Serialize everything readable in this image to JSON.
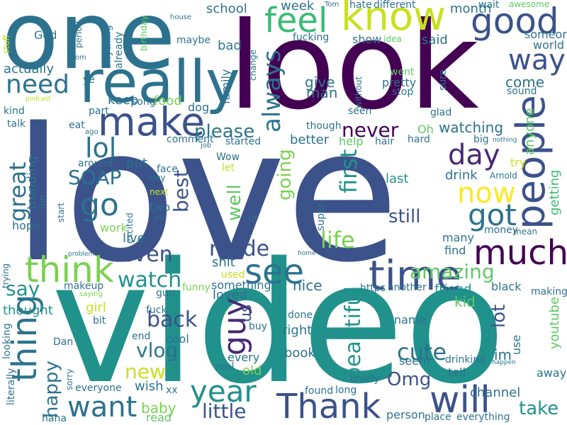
{
  "colors": {
    "background": "#ffffff",
    "palette": [
      "#440154",
      "#3b528b",
      "#21918c",
      "#5ec962",
      "#fde725"
    ]
  },
  "words": [
    {
      "text": "love",
      "color": "#3b528b"
    },
    {
      "text": "video",
      "color": "#21918c"
    },
    {
      "text": "look",
      "color": "#440154"
    },
    {
      "text": "one",
      "color": "#2c728e"
    },
    {
      "text": "know",
      "color": "#c8e020"
    },
    {
      "text": "really",
      "color": "#2c728e"
    },
    {
      "text": "people",
      "color": "#3b528b"
    },
    {
      "text": "make",
      "color": "#3b528b"
    },
    {
      "text": "feel",
      "color": "#3aba76"
    },
    {
      "text": "good",
      "color": "#3b528b"
    },
    {
      "text": "way",
      "color": "#3b528b"
    },
    {
      "text": "need",
      "color": "#2c728e"
    },
    {
      "text": "thing",
      "color": "#2c728e"
    },
    {
      "text": "think",
      "color": "#7ad151"
    },
    {
      "text": "time",
      "color": "#3b528b"
    },
    {
      "text": "much",
      "color": "#440154"
    },
    {
      "text": "day",
      "color": "#482878"
    },
    {
      "text": "now",
      "color": "#fde725"
    },
    {
      "text": "see",
      "color": "#2c728e"
    },
    {
      "text": "guy",
      "color": "#482878"
    },
    {
      "text": "got",
      "color": "#2c728e"
    },
    {
      "text": "go",
      "color": "#2c728e"
    },
    {
      "text": "lol",
      "color": "#2c728e"
    },
    {
      "text": "year",
      "color": "#21918c"
    },
    {
      "text": "Thank",
      "color": "#3b528b"
    },
    {
      "text": "will",
      "color": "#3b528b"
    },
    {
      "text": "want",
      "color": "#2c728e"
    },
    {
      "text": "getting",
      "color": "#3aba76"
    },
    {
      "text": "always",
      "color": "#2c728e"
    },
    {
      "text": "even",
      "color": "#3b528b"
    },
    {
      "text": "watch",
      "color": "#21918c"
    },
    {
      "text": "made",
      "color": "#3b528b"
    },
    {
      "text": "life",
      "color": "#7ad151"
    },
    {
      "text": "say",
      "color": "#21918c"
    },
    {
      "text": "amazing",
      "color": "#5ec962"
    },
    {
      "text": "first",
      "color": "#21918c"
    },
    {
      "text": "back",
      "color": "#3b528b"
    },
    {
      "text": "beautiful",
      "color": "#21918c"
    },
    {
      "text": "great",
      "color": "#2c728e"
    },
    {
      "text": "SOAP",
      "color": "#2c728e"
    },
    {
      "text": "please",
      "color": "#2c728e"
    },
    {
      "text": "best",
      "color": "#3b528b"
    },
    {
      "text": "going",
      "color": "#7ad151"
    },
    {
      "text": "well",
      "color": "#5ec962"
    },
    {
      "text": "cute",
      "color": "#2c728e"
    },
    {
      "text": "lot",
      "color": "#3b528b"
    },
    {
      "text": "vlog",
      "color": "#2c728e"
    },
    {
      "text": "still",
      "color": "#3b528b"
    },
    {
      "text": "never",
      "color": "#440154"
    },
    {
      "text": "happy",
      "color": "#2c728e"
    },
    {
      "text": "little",
      "color": "#3b528b"
    },
    {
      "text": "Omg",
      "color": "#3b528b"
    },
    {
      "text": "take",
      "color": "#21918c"
    },
    {
      "text": "new",
      "color": "#c8e020"
    },
    {
      "text": "us",
      "color": "#3b528b"
    },
    {
      "text": "trending",
      "color": "#2c728e"
    },
    {
      "text": "anyone",
      "color": "#5ec962"
    },
    {
      "text": "come",
      "color": "#2c728e"
    },
    {
      "text": "watching",
      "color": "#2c728e"
    },
    {
      "text": "give",
      "color": "#2c728e"
    },
    {
      "text": "man",
      "color": "#2c728e"
    },
    {
      "text": "week",
      "color": "#2c728e"
    },
    {
      "text": "school",
      "color": "#2c728e"
    },
    {
      "text": "month",
      "color": "#2c728e"
    },
    {
      "text": "show",
      "color": "#2c728e"
    },
    {
      "text": "said",
      "color": "#2c728e"
    },
    {
      "text": "someone",
      "color": "#2c728e"
    },
    {
      "text": "world",
      "color": "#2c728e"
    },
    {
      "text": "family",
      "color": "#2c728e"
    },
    {
      "text": "bad",
      "color": "#2c728e"
    },
    {
      "text": "maybe",
      "color": "#2c728e"
    },
    {
      "text": "actually",
      "color": "#2c728e"
    },
    {
      "text": "God",
      "color": "#2c728e"
    },
    {
      "text": "keep",
      "color": "#2c728e"
    },
    {
      "text": "food",
      "color": "#7ad151"
    },
    {
      "text": "dog",
      "color": "#2c728e"
    },
    {
      "text": "stop",
      "color": "#2c728e"
    },
    {
      "text": "pretty",
      "color": "#2c728e"
    },
    {
      "text": "sound",
      "color": "#2c728e"
    },
    {
      "text": "youtube",
      "color": "#5ec962"
    },
    {
      "text": "Oh",
      "color": "#5ec962"
    },
    {
      "text": "better",
      "color": "#2c728e"
    },
    {
      "text": "help",
      "color": "#5ec962"
    },
    {
      "text": "last",
      "color": "#21918c"
    },
    {
      "text": "drink",
      "color": "#2c728e"
    },
    {
      "text": "try",
      "color": "#c8e020"
    },
    {
      "text": "started",
      "color": "#2c728e"
    },
    {
      "text": "put",
      "color": "#2c728e"
    },
    {
      "text": "two",
      "color": "#2c728e"
    },
    {
      "text": "work",
      "color": "#7ad151"
    },
    {
      "text": "live",
      "color": "#2c728e"
    },
    {
      "text": "hope",
      "color": "#2c728e"
    },
    {
      "text": "shit",
      "color": "#2c728e"
    },
    {
      "text": "something",
      "color": "#2c728e"
    },
    {
      "text": "loved",
      "color": "#2c728e"
    },
    {
      "text": "nice",
      "color": "#2c728e"
    },
    {
      "text": "friend",
      "color": "#21918c"
    },
    {
      "text": "kid",
      "color": "#5ec962"
    },
    {
      "text": "thought",
      "color": "#21918c"
    },
    {
      "text": "girl",
      "color": "#c8e020"
    },
    {
      "text": "right",
      "color": "#2c728e"
    },
    {
      "text": "book",
      "color": "#2c728e"
    },
    {
      "text": "im",
      "color": "#2c728e"
    },
    {
      "text": "use",
      "color": "#2c728e"
    },
    {
      "text": "baby",
      "color": "#7ad151"
    },
    {
      "text": "wish",
      "color": "#2c728e"
    },
    {
      "text": "cool",
      "color": "#2c728e"
    },
    {
      "text": "every",
      "color": "#2c728e"
    },
    {
      "text": "old",
      "color": "#7ad151"
    },
    {
      "text": "channel",
      "color": "#2c728e"
    },
    {
      "text": "find",
      "color": "#2c728e"
    },
    {
      "text": "many",
      "color": "#2c728e"
    },
    {
      "text": "money",
      "color": "#2c728e"
    },
    {
      "text": "black",
      "color": "#2c728e"
    },
    {
      "text": "making",
      "color": "#2c728e"
    },
    {
      "text": "seem",
      "color": "#2c728e"
    },
    {
      "text": "tell",
      "color": "#2c728e"
    },
    {
      "text": "away",
      "color": "#2c728e"
    },
    {
      "text": "everyone",
      "color": "#2c728e"
    },
    {
      "text": "place",
      "color": "#2c728e"
    },
    {
      "text": "everything",
      "color": "#2c728e"
    },
    {
      "text": "person",
      "color": "#2c728e"
    },
    {
      "text": "found",
      "color": "#2c728e"
    },
    {
      "text": "long",
      "color": "#2c728e"
    },
    {
      "text": "lovely",
      "color": "#2c728e"
    },
    {
      "text": "read",
      "color": "#5ec962"
    },
    {
      "text": "haha",
      "color": "#2c728e"
    },
    {
      "text": "literally",
      "color": "#2c728e"
    },
    {
      "text": "sorry",
      "color": "#2c728e"
    },
    {
      "text": "xx",
      "color": "#2c728e"
    },
    {
      "text": "real",
      "color": "#2c728e"
    },
    {
      "text": "Dan",
      "color": "#2c728e"
    },
    {
      "text": "looking",
      "color": "#2c728e"
    },
    {
      "text": "fuck",
      "color": "#2c728e"
    },
    {
      "text": "bit",
      "color": "#2c728e"
    },
    {
      "text": "end",
      "color": "#2c728e"
    },
    {
      "text": "buy",
      "color": "#2c728e"
    },
    {
      "text": "funny",
      "color": "#7ad151"
    },
    {
      "text": "gun",
      "color": "#2c728e"
    },
    {
      "text": "makeup",
      "color": "#2c728e"
    },
    {
      "text": "saying",
      "color": "#7ad151"
    },
    {
      "text": "https",
      "color": "#2c728e"
    },
    {
      "text": "another",
      "color": "#2c728e"
    },
    {
      "text": "used",
      "color": "#c8e020"
    },
    {
      "text": "name",
      "color": "#2c728e"
    },
    {
      "text": "done",
      "color": "#2c728e"
    },
    {
      "text": "drinking",
      "color": "#2c728e"
    },
    {
      "text": "podcast",
      "color": "#c8e020"
    },
    {
      "text": "hate",
      "color": "#2c728e"
    },
    {
      "text": "different",
      "color": "#2c728e"
    },
    {
      "text": "wait",
      "color": "#2c728e"
    },
    {
      "text": "awesome",
      "color": "#5ec962"
    },
    {
      "text": "Tom",
      "color": "#2c728e"
    },
    {
      "text": "fucking",
      "color": "#2c728e"
    },
    {
      "text": "idea",
      "color": "#5ec962"
    },
    {
      "text": "house",
      "color": "#2c728e"
    },
    {
      "text": "stuff",
      "color": "#c8e020"
    },
    {
      "text": "mom",
      "color": "#2c728e"
    },
    {
      "text": "period",
      "color": "#2c728e"
    },
    {
      "text": "anything",
      "color": "#2c728e"
    },
    {
      "text": "already",
      "color": "#2c728e"
    },
    {
      "text": "birthday",
      "color": "#5ec962"
    },
    {
      "text": "change",
      "color": "#2c728e"
    },
    {
      "text": "without",
      "color": "#2c728e"
    },
    {
      "text": "went",
      "color": "#5ec962"
    },
    {
      "text": "sure",
      "color": "#2c728e"
    },
    {
      "text": "kind",
      "color": "#2c728e"
    },
    {
      "text": "song",
      "color": "#2c728e"
    },
    {
      "text": "part",
      "color": "#2c728e"
    },
    {
      "text": "ye",
      "color": "#2c728e"
    },
    {
      "text": "talk",
      "color": "#2c728e"
    },
    {
      "text": "eat",
      "color": "#2c728e"
    },
    {
      "text": "ago",
      "color": "#2c728e"
    },
    {
      "text": "comment",
      "color": "#2c728e"
    },
    {
      "text": "job",
      "color": "#2c728e"
    },
    {
      "text": "seen",
      "color": "#2c728e"
    },
    {
      "text": "though",
      "color": "#2c728e"
    },
    {
      "text": "glad",
      "color": "#2c728e"
    },
    {
      "text": "hard",
      "color": "#2c728e"
    },
    {
      "text": "hair",
      "color": "#2c728e"
    },
    {
      "text": "big",
      "color": "#2c728e"
    },
    {
      "text": "nothing",
      "color": "#2c728e"
    },
    {
      "text": "Wow",
      "color": "#2c728e"
    },
    {
      "text": "let",
      "color": "#c8e020"
    },
    {
      "text": "Arnold",
      "color": "#2c728e"
    },
    {
      "text": "face",
      "color": "#2c728e"
    },
    {
      "text": "Hey",
      "color": "#2c728e"
    },
    {
      "text": "around",
      "color": "#2c728e"
    },
    {
      "text": "fun",
      "color": "#2c728e"
    },
    {
      "text": "start",
      "color": "#2c728e"
    },
    {
      "text": "next",
      "color": "#c8e020"
    },
    {
      "text": "excited",
      "color": "#2c728e"
    },
    {
      "text": "pill",
      "color": "#2c728e"
    },
    {
      "text": "ur",
      "color": "#2c728e"
    },
    {
      "text": "super",
      "color": "#2c728e"
    },
    {
      "text": "mean",
      "color": "#2c728e"
    },
    {
      "text": "problem",
      "color": "#2c728e"
    },
    {
      "text": "home",
      "color": "#2c728e"
    },
    {
      "text": "trying",
      "color": "#2c728e"
    },
    {
      "text": "happen",
      "color": "#2c728e"
    }
  ]
}
